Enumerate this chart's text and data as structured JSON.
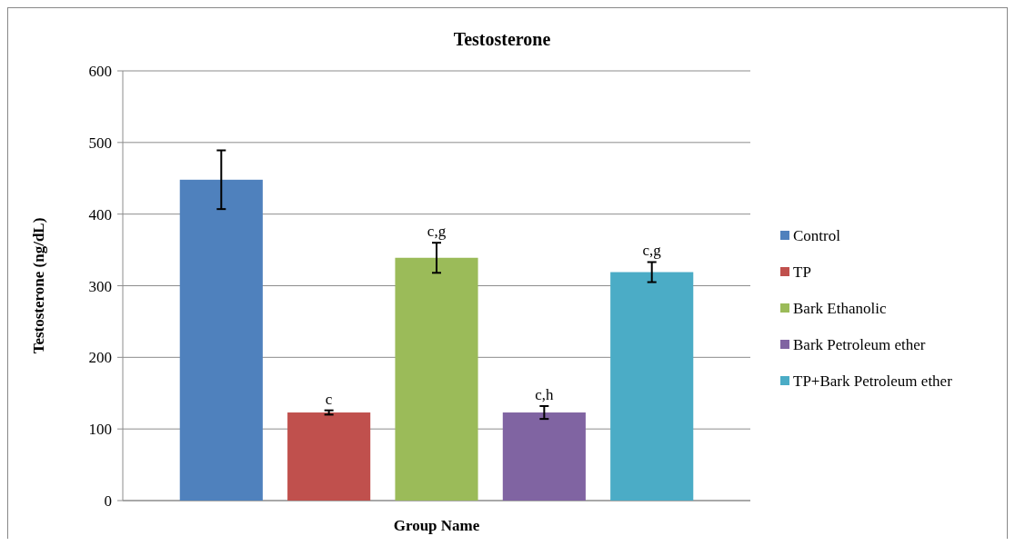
{
  "chart_data": {
    "type": "bar",
    "title": "Testosterone",
    "xlabel": "Group Name",
    "ylabel": "Testosterone (ng/dL)",
    "categories": [
      null
    ],
    "series": [
      {
        "name": "Control",
        "color": "#4f81bd",
        "values": [
          448
        ],
        "errors": [
          41
        ]
      },
      {
        "name": "TP",
        "color": "#c0504d",
        "values": [
          123
        ],
        "errors": [
          3
        ],
        "value_labels": [
          "c"
        ]
      },
      {
        "name": "Bark Ethanolic",
        "color": "#9bbb59",
        "values": [
          339
        ],
        "errors": [
          21
        ],
        "value_labels": [
          "c,g"
        ]
      },
      {
        "name": "Bark Petroleum ether",
        "color": "#8064a2",
        "values": [
          123
        ],
        "errors": [
          9
        ],
        "value_labels": [
          "c,h"
        ]
      },
      {
        "name": "TP+Bark Petroleum ether",
        "color": "#4bacc6",
        "values": [
          319
        ],
        "errors": [
          14
        ],
        "value_labels": [
          "c,g"
        ]
      }
    ],
    "ylim": [
      0,
      600
    ],
    "yticks": [
      0,
      100,
      200,
      300,
      400,
      500,
      600
    ],
    "grid": "y",
    "legend": "right"
  }
}
